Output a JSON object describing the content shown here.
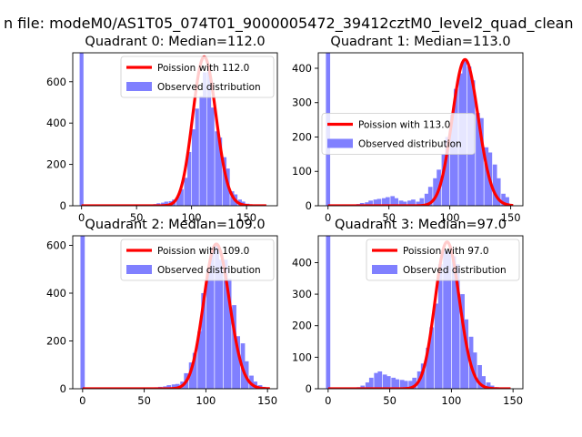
{
  "figure": {
    "suptitle": "n file: modeM0/AS1T05_074T01_9000005472_39412cztM0_level2_quad_clean"
  },
  "chart_data": [
    {
      "type": "histogram",
      "title": "Quadrant 0: Median=112.0",
      "xlim": [
        -8,
        178
      ],
      "ylim": [
        0,
        740
      ],
      "xticks": [
        0,
        50,
        100,
        150
      ],
      "yticks": [
        0,
        200,
        400,
        600
      ],
      "grid": false,
      "legend_position": "top-right",
      "colors": {
        "hist": "#8080ff",
        "curve": "#ff0000"
      },
      "bin_width": 3.5,
      "bars": [
        [
          0,
          740
        ],
        [
          63,
          5
        ],
        [
          67,
          8
        ],
        [
          70,
          12
        ],
        [
          74,
          15
        ],
        [
          77,
          20
        ],
        [
          81,
          22
        ],
        [
          84,
          30
        ],
        [
          88,
          45
        ],
        [
          91,
          80
        ],
        [
          95,
          135
        ],
        [
          98,
          260
        ],
        [
          102,
          370
        ],
        [
          105,
          470
        ],
        [
          109,
          530
        ],
        [
          112,
          645
        ],
        [
          116,
          650
        ],
        [
          119,
          475
        ],
        [
          123,
          360
        ],
        [
          126,
          330
        ],
        [
          130,
          235
        ],
        [
          133,
          180
        ],
        [
          137,
          70
        ],
        [
          140,
          55
        ],
        [
          144,
          30
        ],
        [
          147,
          20
        ],
        [
          151,
          10
        ],
        [
          154,
          5
        ],
        [
          158,
          3
        ]
      ],
      "poisson": {
        "label": "Poission with 112.0",
        "mu": 112.0,
        "peak": 720,
        "x_range": [
          0,
          168
        ]
      },
      "hist_label": "Observed distribution"
    },
    {
      "type": "histogram",
      "title": "Quadrant 1: Median=113.0",
      "xlim": [
        -8,
        160
      ],
      "ylim": [
        0,
        445
      ],
      "xticks": [
        0,
        50,
        100,
        150
      ],
      "yticks": [
        0,
        100,
        200,
        300,
        400
      ],
      "grid": false,
      "legend_position": "center-left",
      "colors": {
        "hist": "#8080ff",
        "curve": "#ff0000"
      },
      "bin_width": 3.5,
      "bars": [
        [
          0,
          445
        ],
        [
          25,
          5
        ],
        [
          28,
          8
        ],
        [
          32,
          10
        ],
        [
          35,
          15
        ],
        [
          39,
          18
        ],
        [
          42,
          20
        ],
        [
          46,
          22
        ],
        [
          49,
          25
        ],
        [
          53,
          28
        ],
        [
          56,
          22
        ],
        [
          60,
          15
        ],
        [
          63,
          12
        ],
        [
          67,
          15
        ],
        [
          70,
          18
        ],
        [
          74,
          12
        ],
        [
          77,
          22
        ],
        [
          81,
          35
        ],
        [
          84,
          55
        ],
        [
          88,
          80
        ],
        [
          91,
          105
        ],
        [
          95,
          150
        ],
        [
          98,
          200
        ],
        [
          102,
          265
        ],
        [
          105,
          340
        ],
        [
          109,
          385
        ],
        [
          112,
          420
        ],
        [
          116,
          405
        ],
        [
          119,
          365
        ],
        [
          123,
          270
        ],
        [
          126,
          255
        ],
        [
          130,
          170
        ],
        [
          133,
          155
        ],
        [
          137,
          120
        ],
        [
          140,
          80
        ],
        [
          144,
          35
        ],
        [
          147,
          25
        ]
      ],
      "poisson": {
        "label": "Poission with 113.0",
        "mu": 113.0,
        "peak": 425,
        "x_range": [
          0,
          152
        ]
      },
      "hist_label": "Observed distribution"
    },
    {
      "type": "histogram",
      "title": "Quadrant 2: Median=109.0",
      "xlim": [
        -8,
        158
      ],
      "ylim": [
        0,
        640
      ],
      "xticks": [
        0,
        50,
        100,
        150
      ],
      "yticks": [
        0,
        200,
        400,
        600
      ],
      "grid": false,
      "legend_position": "top-right",
      "colors": {
        "hist": "#8080ff",
        "curve": "#ff0000"
      },
      "bin_width": 3.5,
      "bars": [
        [
          0,
          640
        ],
        [
          53,
          3
        ],
        [
          56,
          5
        ],
        [
          60,
          6
        ],
        [
          63,
          8
        ],
        [
          67,
          10
        ],
        [
          70,
          15
        ],
        [
          74,
          18
        ],
        [
          77,
          20
        ],
        [
          81,
          30
        ],
        [
          84,
          65
        ],
        [
          88,
          110
        ],
        [
          91,
          150
        ],
        [
          95,
          240
        ],
        [
          98,
          400
        ],
        [
          102,
          500
        ],
        [
          105,
          590
        ],
        [
          109,
          605
        ],
        [
          112,
          540
        ],
        [
          116,
          540
        ],
        [
          119,
          460
        ],
        [
          123,
          350
        ],
        [
          126,
          220
        ],
        [
          130,
          190
        ],
        [
          133,
          115
        ],
        [
          137,
          55
        ],
        [
          140,
          30
        ],
        [
          144,
          15
        ],
        [
          147,
          8
        ]
      ],
      "poisson": {
        "label": "Poission with 109.0",
        "mu": 109.0,
        "peak": 605,
        "x_range": [
          0,
          152
        ]
      },
      "hist_label": "Observed distribution"
    },
    {
      "type": "histogram",
      "title": "Quadrant 3: Median=97.0",
      "xlim": [
        -8,
        158
      ],
      "ylim": [
        0,
        485
      ],
      "xticks": [
        0,
        50,
        100,
        150
      ],
      "yticks": [
        0,
        100,
        200,
        300,
        400
      ],
      "grid": false,
      "legend_position": "top-right",
      "colors": {
        "hist": "#8080ff",
        "curve": "#ff0000"
      },
      "bin_width": 3.5,
      "bars": [
        [
          0,
          485
        ],
        [
          25,
          5
        ],
        [
          28,
          10
        ],
        [
          32,
          20
        ],
        [
          35,
          35
        ],
        [
          39,
          50
        ],
        [
          42,
          55
        ],
        [
          46,
          45
        ],
        [
          49,
          40
        ],
        [
          53,
          35
        ],
        [
          56,
          30
        ],
        [
          60,
          28
        ],
        [
          63,
          25
        ],
        [
          67,
          25
        ],
        [
          70,
          35
        ],
        [
          74,
          55
        ],
        [
          77,
          80
        ],
        [
          81,
          130
        ],
        [
          84,
          195
        ],
        [
          88,
          270
        ],
        [
          91,
          395
        ],
        [
          95,
          440
        ],
        [
          98,
          435
        ],
        [
          102,
          420
        ],
        [
          105,
          395
        ],
        [
          109,
          300
        ],
        [
          112,
          220
        ],
        [
          116,
          165
        ],
        [
          119,
          115
        ],
        [
          123,
          75
        ],
        [
          126,
          40
        ],
        [
          130,
          20
        ],
        [
          133,
          10
        ],
        [
          137,
          5
        ]
      ],
      "poisson": {
        "label": "Poission with 97.0",
        "mu": 97.0,
        "peak": 465,
        "x_range": [
          0,
          148
        ]
      },
      "hist_label": "Observed distribution"
    }
  ]
}
